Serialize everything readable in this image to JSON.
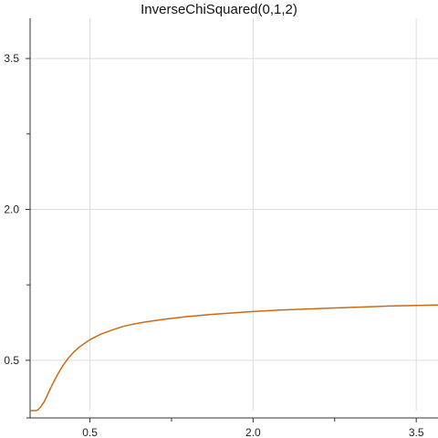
{
  "chart_data": {
    "type": "line",
    "title": "InverseChiSquared(0,1,2)",
    "xlabel": "",
    "ylabel": "",
    "xlim": [
      -0.05,
      3.7
    ],
    "ylim": [
      0.0,
      3.9
    ],
    "x_ticks": [
      0.5,
      2.0,
      3.5
    ],
    "x_tick_labels": [
      "0.5",
      "2.0",
      "3.5"
    ],
    "y_ticks": [
      0.5,
      2.0,
      3.5
    ],
    "y_tick_labels": [
      "0.5",
      "2.0",
      "3.5"
    ],
    "x_minor_ticks": [
      1.25,
      2.75
    ],
    "y_minor_ticks": [
      1.25,
      2.75
    ],
    "grid": true,
    "series": [
      {
        "color": "#cc6a14",
        "x": [
          -0.05,
          0.0,
          0.02,
          0.05,
          0.08,
          0.1,
          0.15,
          0.2,
          0.25,
          0.3,
          0.35,
          0.4,
          0.5,
          0.6,
          0.7,
          0.8,
          0.9,
          1.0,
          1.2,
          1.4,
          1.6,
          1.8,
          2.0,
          2.25,
          2.5,
          2.75,
          3.0,
          3.25,
          3.5,
          3.7
        ],
        "y": [
          0.0,
          0.0,
          0.006,
          0.04,
          0.09,
          0.135,
          0.25,
          0.355,
          0.445,
          0.52,
          0.58,
          0.63,
          0.705,
          0.76,
          0.8,
          0.835,
          0.86,
          0.88,
          0.91,
          0.935,
          0.955,
          0.97,
          0.985,
          1.0,
          1.01,
          1.02,
          1.03,
          1.04,
          1.045,
          1.05
        ]
      }
    ]
  }
}
